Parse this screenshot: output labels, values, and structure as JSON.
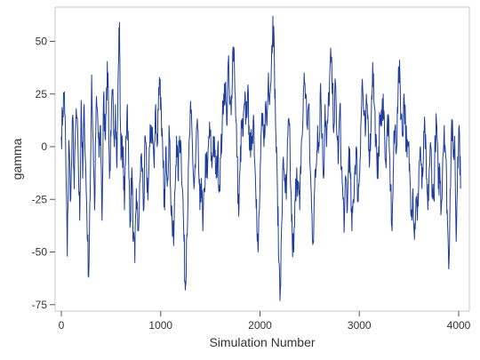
{
  "chart_data": {
    "type": "line",
    "xlabel": "Simulation Number",
    "ylabel": "gamma",
    "xlim": [
      0,
      4000
    ],
    "ylim": [
      -75,
      65
    ],
    "x_ticks": [
      0,
      1000,
      2000,
      3000,
      4000
    ],
    "y_ticks": [
      -75,
      -50,
      -25,
      0,
      25,
      50
    ],
    "grid": false,
    "series": [
      {
        "color": "#1f3d99",
        "points": [
          [
            0,
            5
          ],
          [
            15,
            17
          ],
          [
            30,
            26
          ],
          [
            45,
            -5
          ],
          [
            60,
            -52
          ],
          [
            75,
            3
          ],
          [
            95,
            -25
          ],
          [
            115,
            15
          ],
          [
            130,
            -20
          ],
          [
            150,
            18
          ],
          [
            170,
            -5
          ],
          [
            185,
            -35
          ],
          [
            200,
            22
          ],
          [
            215,
            -15
          ],
          [
            230,
            20
          ],
          [
            250,
            -20
          ],
          [
            265,
            -45
          ],
          [
            275,
            -62
          ],
          [
            290,
            -25
          ],
          [
            305,
            34
          ],
          [
            320,
            2
          ],
          [
            335,
            -30
          ],
          [
            350,
            18
          ],
          [
            365,
            15
          ],
          [
            380,
            -5
          ],
          [
            395,
            10
          ],
          [
            410,
            -35
          ],
          [
            425,
            24
          ],
          [
            440,
            5
          ],
          [
            455,
            28
          ],
          [
            470,
            35
          ],
          [
            485,
            -15
          ],
          [
            500,
            5
          ],
          [
            515,
            25
          ],
          [
            530,
            5
          ],
          [
            545,
            20
          ],
          [
            560,
            -10
          ],
          [
            575,
            40
          ],
          [
            585,
            59
          ],
          [
            595,
            10
          ],
          [
            605,
            -5
          ],
          [
            620,
            0
          ],
          [
            635,
            -30
          ],
          [
            650,
            5
          ],
          [
            665,
            20
          ],
          [
            680,
            -15
          ],
          [
            695,
            -35
          ],
          [
            710,
            -10
          ],
          [
            725,
            -45
          ],
          [
            740,
            -55
          ],
          [
            755,
            -20
          ],
          [
            770,
            -40
          ],
          [
            785,
            -30
          ],
          [
            800,
            -5
          ],
          [
            815,
            -10
          ],
          [
            830,
            -30
          ],
          [
            845,
            5
          ],
          [
            860,
            -15
          ],
          [
            875,
            -20
          ],
          [
            890,
            0
          ],
          [
            905,
            10
          ],
          [
            920,
            5
          ],
          [
            935,
            -10
          ],
          [
            950,
            20
          ],
          [
            965,
            0
          ],
          [
            980,
            28
          ],
          [
            995,
            32
          ],
          [
            1010,
            5
          ],
          [
            1025,
            -10
          ],
          [
            1040,
            -30
          ],
          [
            1055,
            0
          ],
          [
            1070,
            -15
          ],
          [
            1085,
            10
          ],
          [
            1100,
            -20
          ],
          [
            1115,
            -35
          ],
          [
            1130,
            -47
          ],
          [
            1145,
            -20
          ],
          [
            1160,
            5
          ],
          [
            1175,
            -15
          ],
          [
            1190,
            5
          ],
          [
            1205,
            0
          ],
          [
            1220,
            -20
          ],
          [
            1235,
            -45
          ],
          [
            1248,
            -68
          ],
          [
            1260,
            -45
          ],
          [
            1275,
            -25
          ],
          [
            1290,
            5
          ],
          [
            1305,
            16
          ],
          [
            1320,
            0
          ],
          [
            1335,
            -20
          ],
          [
            1350,
            -10
          ],
          [
            1365,
            10
          ],
          [
            1380,
            -5
          ],
          [
            1395,
            -30
          ],
          [
            1410,
            -15
          ],
          [
            1425,
            -40
          ],
          [
            1440,
            -20
          ],
          [
            1455,
            -5
          ],
          [
            1470,
            -15
          ],
          [
            1485,
            5
          ],
          [
            1500,
            5
          ],
          [
            1515,
            -10
          ],
          [
            1530,
            5
          ],
          [
            1545,
            -5
          ],
          [
            1560,
            -15
          ],
          [
            1575,
            0
          ],
          [
            1590,
            -20
          ],
          [
            1605,
            -5
          ],
          [
            1620,
            10
          ],
          [
            1635,
            25
          ],
          [
            1650,
            30
          ],
          [
            1665,
            10
          ],
          [
            1680,
            40
          ],
          [
            1695,
            20
          ],
          [
            1710,
            15
          ],
          [
            1725,
            45
          ],
          [
            1740,
            46
          ],
          [
            1755,
            15
          ],
          [
            1770,
            -5
          ],
          [
            1785,
            -33
          ],
          [
            1800,
            -10
          ],
          [
            1815,
            10
          ],
          [
            1830,
            5
          ],
          [
            1845,
            20
          ],
          [
            1860,
            15
          ],
          [
            1875,
            25
          ],
          [
            1890,
            10
          ],
          [
            1905,
            -5
          ],
          [
            1920,
            5
          ],
          [
            1935,
            15
          ],
          [
            1950,
            -10
          ],
          [
            1965,
            -25
          ],
          [
            1980,
            -50
          ],
          [
            1995,
            -30
          ],
          [
            2010,
            5
          ],
          [
            2025,
            10
          ],
          [
            2040,
            0
          ],
          [
            2055,
            20
          ],
          [
            2070,
            10
          ],
          [
            2085,
            35
          ],
          [
            2100,
            25
          ],
          [
            2115,
            40
          ],
          [
            2130,
            62
          ],
          [
            2145,
            40
          ],
          [
            2160,
            5
          ],
          [
            2175,
            -20
          ],
          [
            2190,
            -55
          ],
          [
            2205,
            -68
          ],
          [
            2220,
            -35
          ],
          [
            2235,
            -5
          ],
          [
            2250,
            -15
          ],
          [
            2265,
            -25
          ],
          [
            2280,
            5
          ],
          [
            2295,
            10
          ],
          [
            2310,
            -20
          ],
          [
            2325,
            -45
          ],
          [
            2340,
            -50
          ],
          [
            2355,
            -25
          ],
          [
            2370,
            -10
          ],
          [
            2385,
            -20
          ],
          [
            2400,
            -30
          ],
          [
            2415,
            0
          ],
          [
            2430,
            10
          ],
          [
            2445,
            35
          ],
          [
            2460,
            25
          ],
          [
            2475,
            10
          ],
          [
            2490,
            20
          ],
          [
            2505,
            -10
          ],
          [
            2520,
            -30
          ],
          [
            2535,
            -45
          ],
          [
            2550,
            -20
          ],
          [
            2565,
            -10
          ],
          [
            2580,
            10
          ],
          [
            2595,
            0
          ],
          [
            2610,
            30
          ],
          [
            2625,
            5
          ],
          [
            2640,
            -15
          ],
          [
            2655,
            20
          ],
          [
            2670,
            0
          ],
          [
            2685,
            15
          ],
          [
            2700,
            30
          ],
          [
            2715,
            43
          ],
          [
            2730,
            25
          ],
          [
            2745,
            10
          ],
          [
            2760,
            30
          ],
          [
            2775,
            5
          ],
          [
            2790,
            -5
          ],
          [
            2805,
            20
          ],
          [
            2820,
            -10
          ],
          [
            2835,
            -25
          ],
          [
            2850,
            -35
          ],
          [
            2865,
            -15
          ],
          [
            2880,
            -30
          ],
          [
            2895,
            0
          ],
          [
            2910,
            -15
          ],
          [
            2925,
            -40
          ],
          [
            2940,
            -25
          ],
          [
            2955,
            -10
          ],
          [
            2970,
            0
          ],
          [
            2985,
            -25
          ],
          [
            3000,
            -15
          ],
          [
            3015,
            10
          ],
          [
            3030,
            32
          ],
          [
            3045,
            15
          ],
          [
            3060,
            5
          ],
          [
            3075,
            20
          ],
          [
            3090,
            10
          ],
          [
            3105,
            -5
          ],
          [
            3120,
            15
          ],
          [
            3135,
            40
          ],
          [
            3150,
            20
          ],
          [
            3165,
            5
          ],
          [
            3180,
            -15
          ],
          [
            3195,
            0
          ],
          [
            3210,
            15
          ],
          [
            3225,
            10
          ],
          [
            3240,
            25
          ],
          [
            3255,
            5
          ],
          [
            3270,
            -10
          ],
          [
            3285,
            15
          ],
          [
            3300,
            0
          ],
          [
            3315,
            -20
          ],
          [
            3330,
            -40
          ],
          [
            3345,
            -5
          ],
          [
            3360,
            10
          ],
          [
            3375,
            0
          ],
          [
            3390,
            25
          ],
          [
            3405,
            41
          ],
          [
            3420,
            15
          ],
          [
            3435,
            5
          ],
          [
            3450,
            25
          ],
          [
            3465,
            10
          ],
          [
            3480,
            -5
          ],
          [
            3495,
            0
          ],
          [
            3510,
            -15
          ],
          [
            3525,
            -30
          ],
          [
            3540,
            -20
          ],
          [
            3555,
            -44
          ],
          [
            3570,
            -25
          ],
          [
            3585,
            -35
          ],
          [
            3600,
            -10
          ],
          [
            3615,
            0
          ],
          [
            3630,
            -20
          ],
          [
            3645,
            -5
          ],
          [
            3660,
            10
          ],
          [
            3675,
            -15
          ],
          [
            3690,
            -30
          ],
          [
            3705,
            -10
          ],
          [
            3720,
            0
          ],
          [
            3735,
            -20
          ],
          [
            3750,
            -25
          ],
          [
            3765,
            5
          ],
          [
            3780,
            10
          ],
          [
            3795,
            -20
          ],
          [
            3810,
            -10
          ],
          [
            3825,
            -30
          ],
          [
            3840,
            -5
          ],
          [
            3855,
            10
          ],
          [
            3870,
            -5
          ],
          [
            3885,
            -30
          ],
          [
            3900,
            -58
          ],
          [
            3915,
            -20
          ],
          [
            3930,
            13
          ],
          [
            3945,
            -5
          ],
          [
            3960,
            5
          ],
          [
            3975,
            -45
          ],
          [
            3990,
            -5
          ],
          [
            4005,
            10
          ],
          [
            4020,
            -20
          ]
        ]
      }
    ]
  }
}
